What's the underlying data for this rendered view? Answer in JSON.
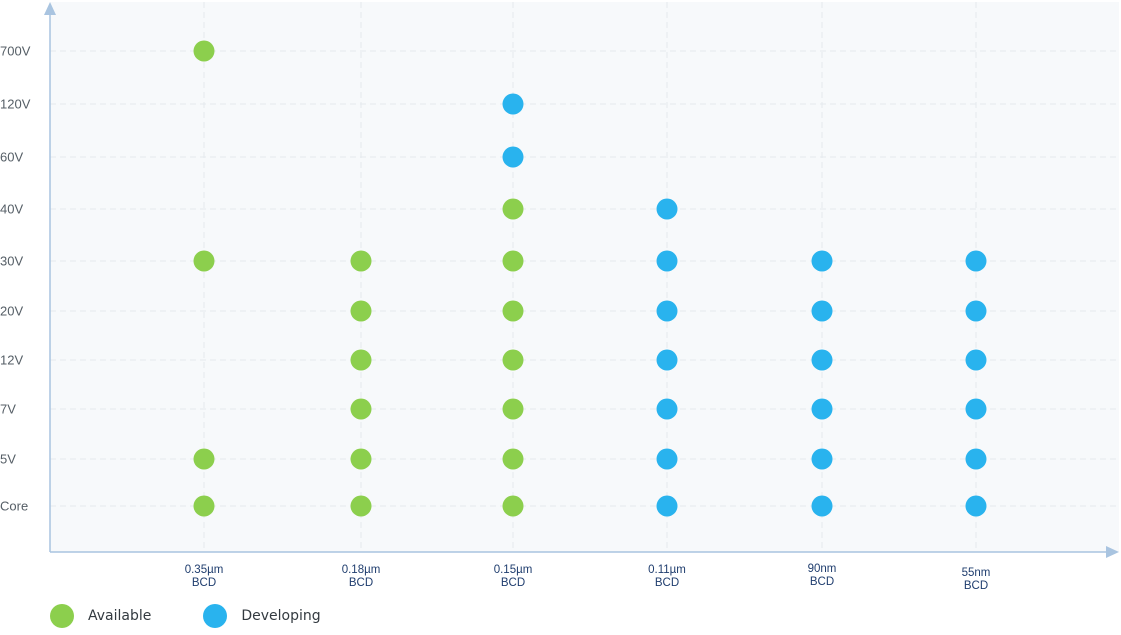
{
  "chart_data": {
    "type": "scatter",
    "categories": [
      "0.35µm BCD",
      "0.18µm BCD",
      "0.15µm BCD",
      "0.11µm BCD",
      "90nm BCD",
      "55nm BCD"
    ],
    "x_tick_lines": [
      [
        "0.35µm",
        "BCD"
      ],
      [
        "0.18µm",
        "BCD"
      ],
      [
        "0.15µm",
        "BCD"
      ],
      [
        "0.11µm",
        "BCD"
      ],
      [
        "90nm",
        "BCD"
      ],
      [
        "55nm",
        "BCD"
      ]
    ],
    "y_categories": [
      "Core",
      "5V",
      "7V",
      "12V",
      "20V",
      "30V",
      "40V",
      "60V",
      "120V",
      "700V"
    ],
    "grid": true,
    "legend_position": "bottom-left",
    "series": [
      {
        "name": "Available",
        "color": "#8ccf4d",
        "points": [
          {
            "x": "0.35µm BCD",
            "y": "700V"
          },
          {
            "x": "0.35µm BCD",
            "y": "30V"
          },
          {
            "x": "0.35µm BCD",
            "y": "5V"
          },
          {
            "x": "0.35µm BCD",
            "y": "Core"
          },
          {
            "x": "0.18µm BCD",
            "y": "30V"
          },
          {
            "x": "0.18µm BCD",
            "y": "20V"
          },
          {
            "x": "0.18µm BCD",
            "y": "12V"
          },
          {
            "x": "0.18µm BCD",
            "y": "7V"
          },
          {
            "x": "0.18µm BCD",
            "y": "5V"
          },
          {
            "x": "0.18µm BCD",
            "y": "Core"
          },
          {
            "x": "0.15µm BCD",
            "y": "40V"
          },
          {
            "x": "0.15µm BCD",
            "y": "30V"
          },
          {
            "x": "0.15µm BCD",
            "y": "20V"
          },
          {
            "x": "0.15µm BCD",
            "y": "12V"
          },
          {
            "x": "0.15µm BCD",
            "y": "7V"
          },
          {
            "x": "0.15µm BCD",
            "y": "5V"
          },
          {
            "x": "0.15µm BCD",
            "y": "Core"
          }
        ]
      },
      {
        "name": "Developing",
        "color": "#29b3ee",
        "points": [
          {
            "x": "0.15µm BCD",
            "y": "120V"
          },
          {
            "x": "0.15µm BCD",
            "y": "60V"
          },
          {
            "x": "0.11µm BCD",
            "y": "40V"
          },
          {
            "x": "0.11µm BCD",
            "y": "30V"
          },
          {
            "x": "0.11µm BCD",
            "y": "20V"
          },
          {
            "x": "0.11µm BCD",
            "y": "12V"
          },
          {
            "x": "0.11µm BCD",
            "y": "7V"
          },
          {
            "x": "0.11µm BCD",
            "y": "5V"
          },
          {
            "x": "0.11µm BCD",
            "y": "Core"
          },
          {
            "x": "90nm BCD",
            "y": "30V"
          },
          {
            "x": "90nm BCD",
            "y": "20V"
          },
          {
            "x": "90nm BCD",
            "y": "12V"
          },
          {
            "x": "90nm BCD",
            "y": "7V"
          },
          {
            "x": "90nm BCD",
            "y": "5V"
          },
          {
            "x": "90nm BCD",
            "y": "Core"
          },
          {
            "x": "55nm BCD",
            "y": "30V"
          },
          {
            "x": "55nm BCD",
            "y": "20V"
          },
          {
            "x": "55nm BCD",
            "y": "12V"
          },
          {
            "x": "55nm BCD",
            "y": "7V"
          },
          {
            "x": "55nm BCD",
            "y": "5V"
          },
          {
            "x": "55nm BCD",
            "y": "Core"
          }
        ]
      }
    ]
  },
  "legend": {
    "items": [
      {
        "label": "Available",
        "color": "#8ccf4d"
      },
      {
        "label": "Developing",
        "color": "#29b3ee"
      }
    ]
  },
  "colors": {
    "axis": "#a9c4e0",
    "grid": "#e4e9ee",
    "plot_background": "#f7f9fb"
  }
}
